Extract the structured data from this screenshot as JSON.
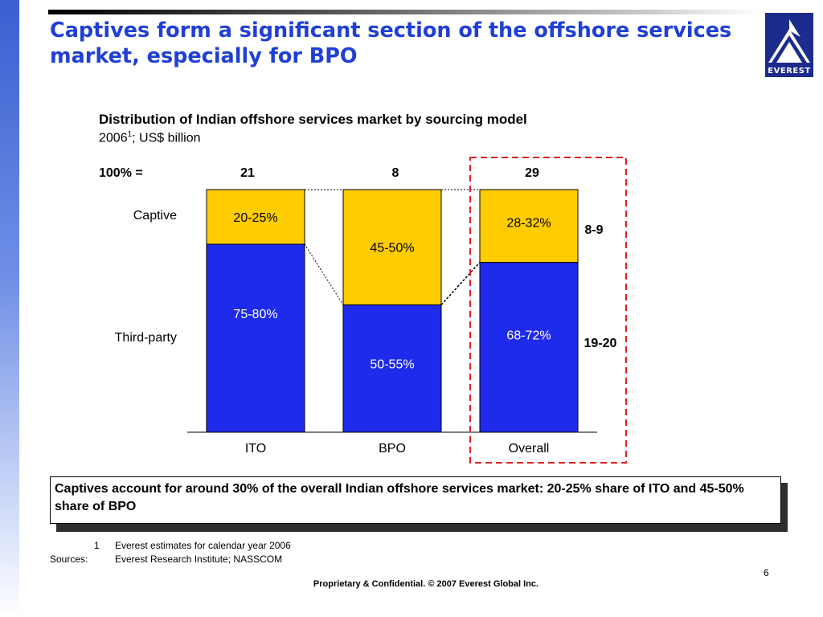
{
  "slide": {
    "title": "Captives form a significant section of the offshore services market, especially for BPO",
    "logo_text": "EVEREST",
    "summary": "Captives account for around 30% of the overall Indian offshore services market: 20-25% share of ITO and 45-50% share of BPO",
    "footnote_number": "1",
    "footnote_text": "Everest estimates for calendar year 2006",
    "sources_label": "Sources:",
    "sources_text": "Everest Research Institute; NASSCOM",
    "page_number": "6",
    "footer": "Proprietary & Confidential. © 2007 Everest Global Inc.",
    "colors": {
      "title": "#1f3fd6",
      "third_party": "#1f2bea",
      "captive": "#ffcc00",
      "highlight": "#e02020"
    }
  },
  "chart_data": {
    "type": "bar",
    "stacked": true,
    "normalized": true,
    "title": "Distribution of Indian offshore services market by sourcing model",
    "subtitle_year": "2006",
    "subtitle_sup": "1",
    "subtitle_rest": "; US$ billion",
    "total_label": "100% =",
    "categories": [
      "ITO",
      "BPO",
      "Overall"
    ],
    "totals": [
      "21",
      "8",
      "29"
    ],
    "series": [
      {
        "name": "Third-party",
        "values": [
          77.5,
          52.5,
          70
        ],
        "labels": [
          "75-80%",
          "50-55%",
          "68-72%"
        ]
      },
      {
        "name": "Captive",
        "values": [
          22.5,
          47.5,
          30
        ],
        "labels": [
          "20-25%",
          "45-50%",
          "28-32%"
        ]
      }
    ],
    "overall_absolute": {
      "Captive": "8-9",
      "Third-party": "19-20"
    },
    "ylim": [
      0,
      100
    ]
  }
}
